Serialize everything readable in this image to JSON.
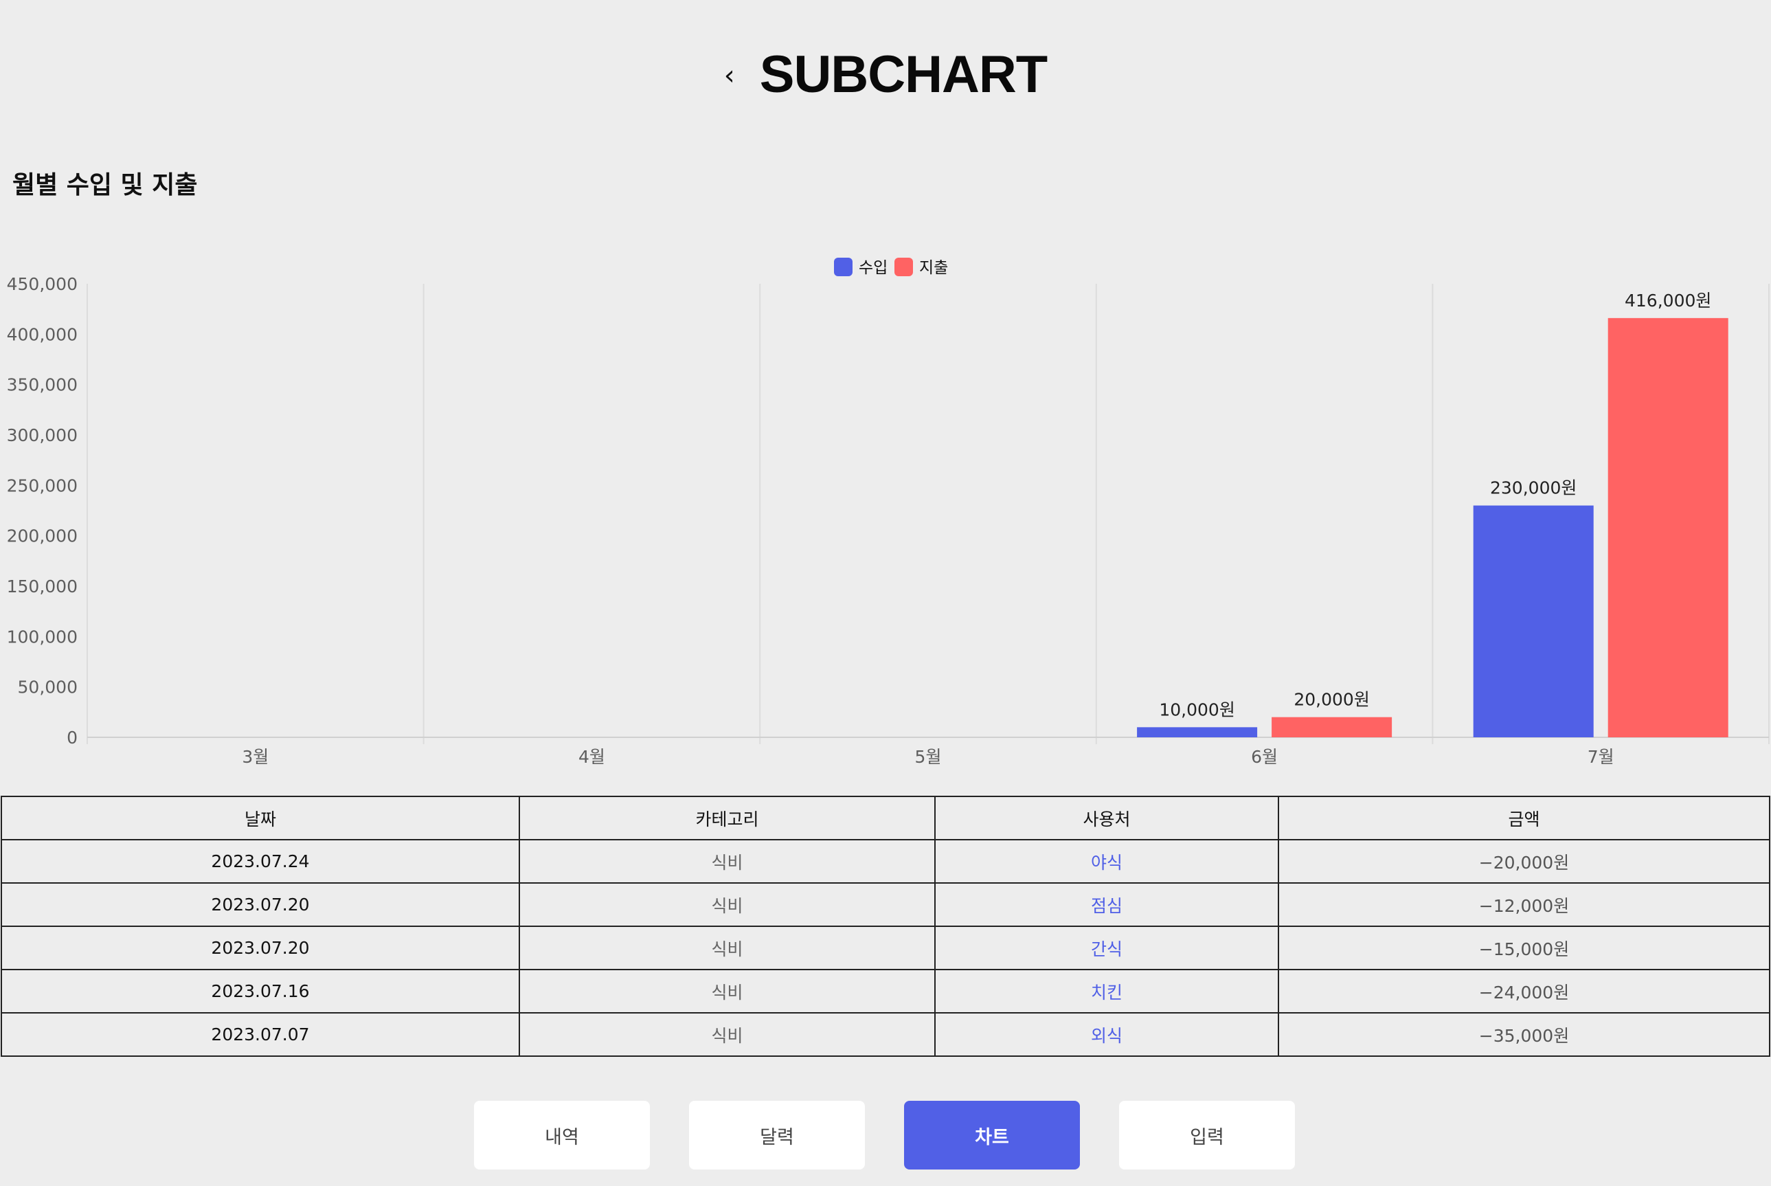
{
  "header": {
    "back_icon": "‹",
    "title": "SUBCHART"
  },
  "section": {
    "title": "월별 수입 및 지출"
  },
  "chart_data": {
    "type": "bar",
    "categories": [
      "3월",
      "4월",
      "5월",
      "6월",
      "7월"
    ],
    "series": [
      {
        "name": "수입",
        "color": "#5160e6",
        "values": [
          0,
          0,
          0,
          10000,
          230000
        ],
        "labels": [
          "",
          "",
          "",
          "10,000원",
          "230,000원"
        ]
      },
      {
        "name": "지출",
        "color": "#ff6363",
        "values": [
          0,
          0,
          0,
          20000,
          416000
        ],
        "labels": [
          "",
          "",
          "",
          "20,000원",
          "416,000원"
        ]
      }
    ],
    "ylim": [
      0,
      450000
    ],
    "yticks": [
      "0",
      "50,000",
      "100,000",
      "150,000",
      "200,000",
      "250,000",
      "300,000",
      "350,000",
      "400,000",
      "450,000"
    ],
    "legend": "top-center",
    "grid": "vertical"
  },
  "table": {
    "headers": [
      "날짜",
      "카테고리",
      "사용처",
      "금액"
    ],
    "rows": [
      {
        "date": "2023.07.24",
        "category": "식비",
        "place": "야식",
        "amount": "−20,000원"
      },
      {
        "date": "2023.07.20",
        "category": "식비",
        "place": "점심",
        "amount": "−12,000원"
      },
      {
        "date": "2023.07.20",
        "category": "식비",
        "place": "간식",
        "amount": "−15,000원"
      },
      {
        "date": "2023.07.16",
        "category": "식비",
        "place": "치킨",
        "amount": "−24,000원"
      },
      {
        "date": "2023.07.07",
        "category": "식비",
        "place": "외식",
        "amount": "−35,000원"
      }
    ]
  },
  "nav": {
    "items": [
      {
        "label": "내역",
        "active": false
      },
      {
        "label": "달력",
        "active": false
      },
      {
        "label": "차트",
        "active": true
      },
      {
        "label": "입력",
        "active": false
      }
    ]
  }
}
